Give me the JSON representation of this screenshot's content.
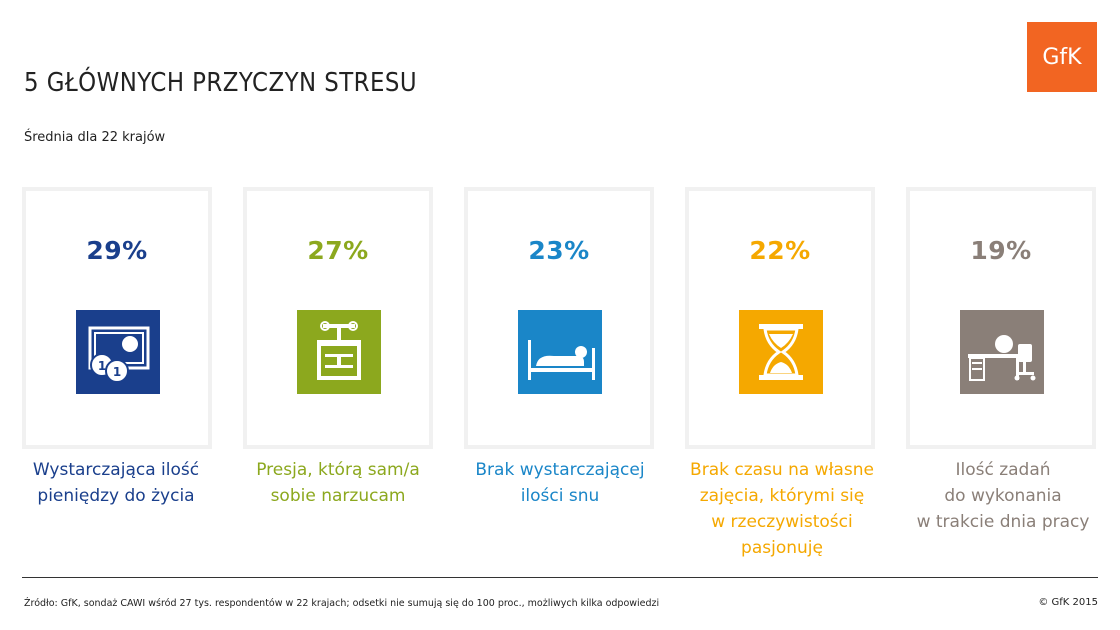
{
  "header": {
    "title": "5 GŁÓWNYCH PRZYCZYN STRESU",
    "subtitle": "Średnia dla 22 krajów",
    "logo_text": "GfK",
    "logo_color": "#f26522"
  },
  "chart_data": {
    "type": "bar",
    "title": "5 GŁÓWNYCH PRZYCZYN STRESU",
    "subtitle": "Średnia dla 22 krajów",
    "categories": [
      "Wystarczająca ilość pieniędzy do życia",
      "Presja, którą sam/a sobie narzucam",
      "Brak wystarczającej ilości snu",
      "Brak czasu na własne zajęcia, którymi się w rzeczywistości pasjonuję",
      "Ilość zadań do wykonania w trakcie dnia pracy"
    ],
    "values": [
      29,
      27,
      23,
      22,
      19
    ],
    "unit": "%"
  },
  "cards": [
    {
      "value_label": "29%",
      "lines": [
        "Wystarczająca ilość",
        "pieniędzy do życia"
      ],
      "color": "#1a3f8c",
      "icon": "money-icon"
    },
    {
      "value_label": "27%",
      "lines": [
        "Presja, którą sam/a",
        "sobie narzucam"
      ],
      "color": "#8ca81e",
      "icon": "press-icon"
    },
    {
      "value_label": "23%",
      "lines": [
        "Brak wystarczającej",
        "ilości snu"
      ],
      "color": "#1a86c8",
      "icon": "bed-icon"
    },
    {
      "value_label": "22%",
      "lines": [
        "Brak czasu na własne",
        "zajęcia, którymi się",
        "w rzeczywistości",
        "pasjonuję"
      ],
      "color": "#f5a800",
      "icon": "hourglass-icon"
    },
    {
      "value_label": "19%",
      "lines": [
        "Ilość zadań",
        "do wykonania",
        "w trakcie dnia pracy"
      ],
      "color": "#8a7f78",
      "icon": "desk-icon"
    }
  ],
  "footer": {
    "source": "Źródło: GfK, sondaż CAWI wśród 27 tys. respondentów w 22 krajach; odsetki nie sumują się do 100 proc., możliwych kilka odpowiedzi",
    "copyright": "© GfK 2015"
  }
}
